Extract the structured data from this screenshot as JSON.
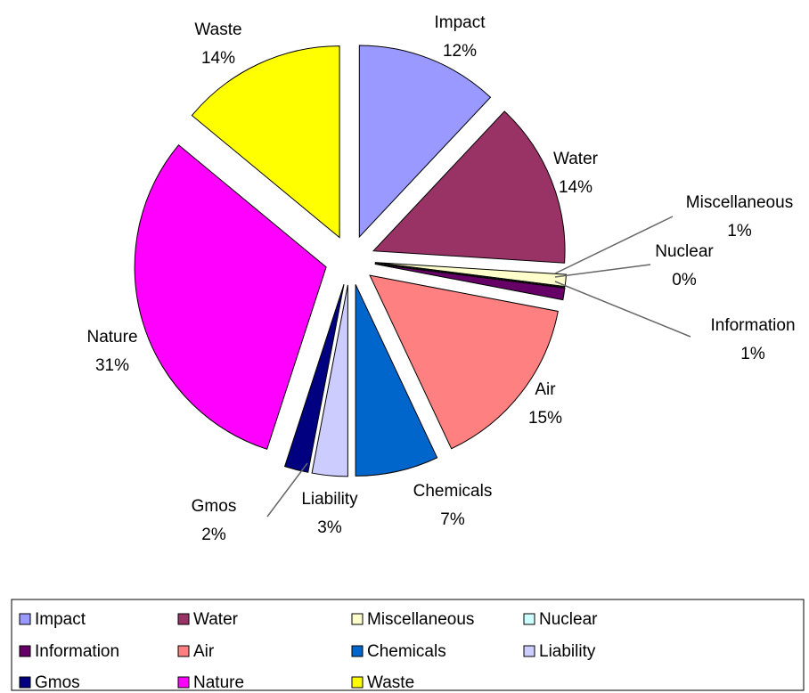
{
  "chart_data": {
    "type": "pie",
    "categories": [
      "Impact",
      "Water",
      "Miscellaneous",
      "Nuclear",
      "Information",
      "Air",
      "Chemicals",
      "Liability",
      "Gmos",
      "Nature",
      "Waste"
    ],
    "values": [
      12,
      14,
      1,
      0,
      1,
      15,
      7,
      3,
      2,
      31,
      14
    ],
    "value_labels": [
      "12%",
      "14%",
      "1%",
      "0%",
      "1%",
      "15%",
      "7%",
      "3%",
      "2%",
      "31%",
      "14%"
    ],
    "colors": [
      "#9999ff",
      "#993366",
      "#ffffcc",
      "#ccffff",
      "#660066",
      "#ff8080",
      "#0066cc",
      "#ccccff",
      "#000080",
      "#ff00ff",
      "#ffff00"
    ],
    "legend": "bottom"
  }
}
